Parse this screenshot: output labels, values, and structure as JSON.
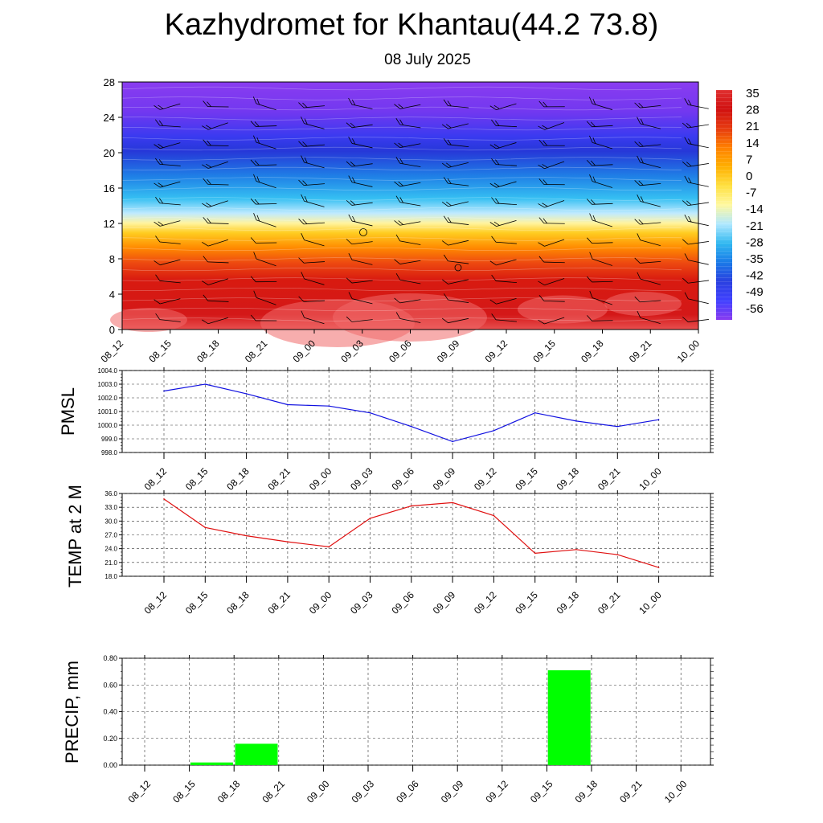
{
  "title": "Kazhydromet for Khantau(44.2 73.8)",
  "subtitle": "08 July 2025",
  "colors": {
    "pressure_line": "#1010e0",
    "temp_line": "#e01010",
    "precip_bar": "#00ff00"
  },
  "chart_data": [
    {
      "type": "heatmap",
      "name": "temperature-cross-section",
      "x": [
        "08_12",
        "08_15",
        "08_18",
        "08_21",
        "09_00",
        "09_03",
        "09_06",
        "09_09",
        "09_12",
        "09_15",
        "09_18",
        "09_21",
        "10_00"
      ],
      "y_ticks": [
        0,
        4,
        8,
        12,
        16,
        20,
        24,
        28
      ],
      "ylim": [
        0,
        28
      ],
      "colorbar_labels": [
        "35",
        "28",
        "21",
        "14",
        "7",
        "0",
        "-7",
        "-14",
        "-21",
        "-28",
        "-35",
        "-42",
        "-49",
        "-56"
      ],
      "colormap": [
        "#e03030",
        "#d01010",
        "#e63a10",
        "#ff8000",
        "#ffb000",
        "#ffe040",
        "#fff8a0",
        "#b0e8ff",
        "#30b8f0",
        "#1a7ae8",
        "#2a40e0",
        "#4040ff",
        "#8a3cf0"
      ],
      "overlay": "wind barbs"
    },
    {
      "type": "line",
      "name": "PMSL",
      "ylabel": "PMSL",
      "x": [
        "08_12",
        "08_15",
        "08_18",
        "08_21",
        "09_00",
        "09_03",
        "09_06",
        "09_09",
        "09_12",
        "09_15",
        "09_18",
        "09_21",
        "10_00"
      ],
      "values": [
        1002.5,
        1003.0,
        1002.3,
        1001.5,
        1001.4,
        1000.9,
        999.9,
        998.8,
        999.6,
        1000.9,
        1000.3,
        999.9,
        1000.4
      ],
      "ylim": [
        998.0,
        1004.0
      ],
      "y_ticks": [
        "998.0",
        "999.0",
        "1000.0",
        "1001.0",
        "1002.0",
        "1003.0",
        "1004.0"
      ],
      "grid": true
    },
    {
      "type": "line",
      "name": "TEMP at 2 M",
      "ylabel": "TEMP at 2 M",
      "x": [
        "08_12",
        "08_15",
        "08_18",
        "08_21",
        "09_00",
        "09_03",
        "09_06",
        "09_09",
        "09_12",
        "09_15",
        "09_18",
        "09_21",
        "10_00"
      ],
      "values": [
        34.8,
        28.6,
        26.8,
        25.5,
        24.4,
        30.6,
        33.3,
        34.0,
        31.2,
        23.0,
        23.8,
        22.7,
        19.9
      ],
      "ylim": [
        18.0,
        36.0
      ],
      "y_ticks": [
        "18.0",
        "21.0",
        "24.0",
        "27.0",
        "30.0",
        "33.0",
        "36.0"
      ],
      "grid": true
    },
    {
      "type": "bar",
      "name": "PRECIP, mm",
      "ylabel": "PRECIP, mm",
      "categories": [
        "08_12",
        "08_15",
        "08_18",
        "08_21",
        "09_00",
        "09_03",
        "09_06",
        "09_09",
        "09_12",
        "09_15",
        "09_18",
        "09_21",
        "10_00"
      ],
      "values": [
        0,
        0.02,
        0.16,
        0,
        0,
        0,
        0,
        0,
        0,
        0.71,
        0,
        0,
        0
      ],
      "ylim": [
        0.0,
        0.8
      ],
      "y_ticks": [
        "0.00",
        "0.20",
        "0.40",
        "0.60",
        "0.80"
      ],
      "grid": true
    }
  ]
}
